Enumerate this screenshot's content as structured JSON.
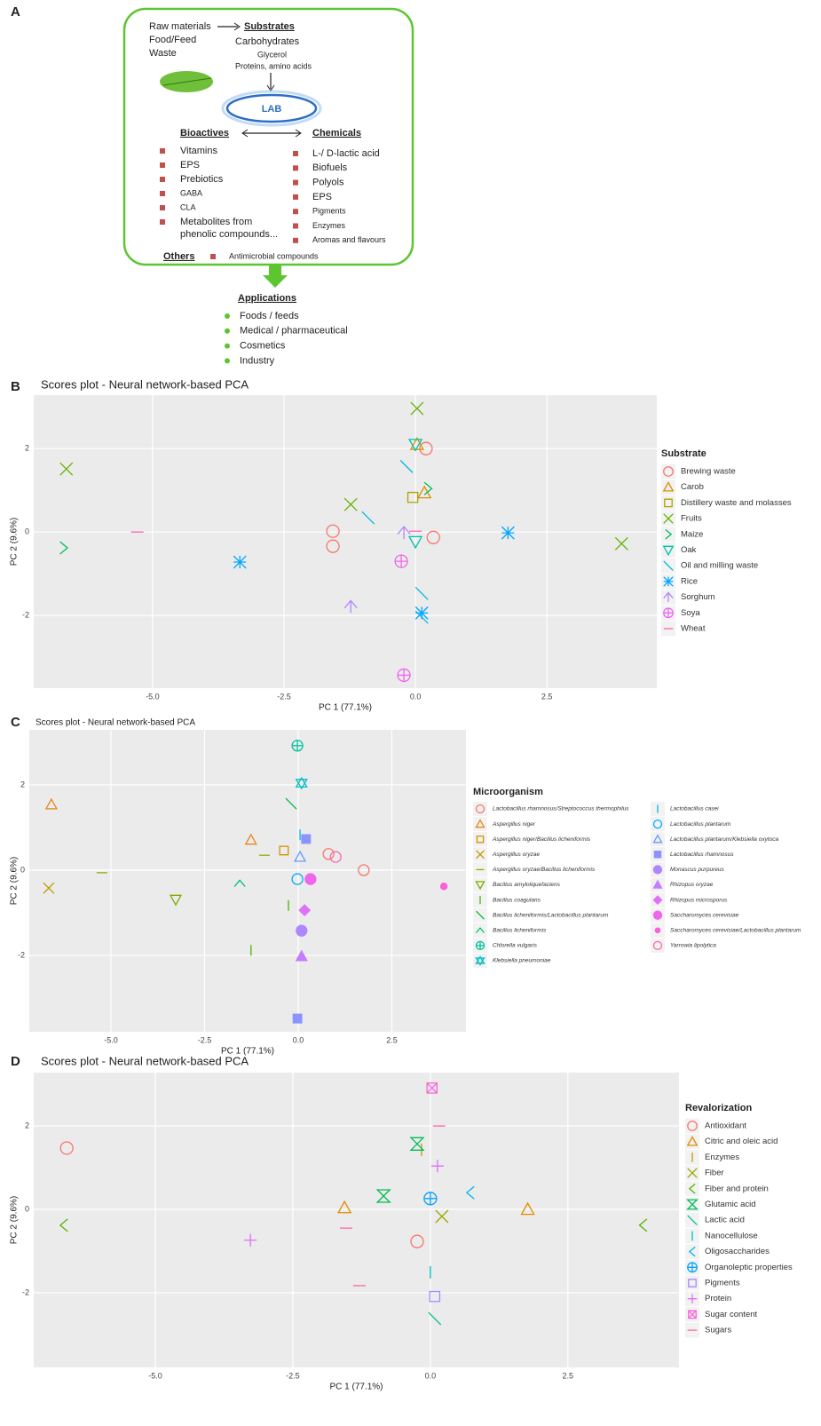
{
  "diagram": {
    "label": "A",
    "raw": [
      "Raw materials",
      "Food/Feed",
      "Waste"
    ],
    "substrates": {
      "title": "Substrates",
      "items": [
        "Carbohydrates",
        "Glycerol",
        "Proteins, amino acids"
      ]
    },
    "center": "LAB",
    "bioactives": {
      "title": "Bioactives",
      "items": [
        "Vitamins",
        "EPS",
        "Prebiotics",
        "GABA",
        "CLA",
        "Metabolites from"
      ],
      "continuation": "phenolic compounds..."
    },
    "chemicals": {
      "title": "Chemicals",
      "items": [
        "L-/ D-lactic acid",
        "Biofuels",
        "Polyols",
        "EPS",
        "Pigments",
        "Enzymes",
        "Aromas and flavours"
      ]
    },
    "others": {
      "title": "Others",
      "text": "Antimicrobial compounds"
    },
    "applications": {
      "title": "Applications",
      "items": [
        "Foods / feeds",
        "Medical / pharmaceutical",
        "Cosmetics",
        "Industry"
      ]
    }
  },
  "chart_data": [
    {
      "type": "scatter",
      "label": "B",
      "title": "Scores plot - Neural network-based PCA",
      "xlabel": "PC 1 (77.1%)",
      "ylabel": "PC 2 (9.6%)",
      "xlim": [
        -7.26,
        4.59
      ],
      "ylim": [
        -3.74,
        3.28
      ],
      "xticks": [
        {
          "value": -5,
          "label": "-5.0"
        },
        -2.5,
        {
          "value": 0,
          "label": "0.0"
        },
        2.5
      ],
      "yticks": [
        -2,
        0,
        2
      ],
      "grid": true,
      "legend_title": "Substrate",
      "series": [
        {
          "name": "Brewing waste",
          "color": "#F8766D",
          "marker": "circle",
          "x": [
            0.2,
            -1.57,
            -1.57,
            0.34
          ],
          "values": [
            2.0,
            0.02,
            -0.34,
            -0.13
          ]
        },
        {
          "name": "Carob",
          "color": "#DB8E00",
          "marker": "triangle",
          "x": [
            0.03,
            0.17
          ],
          "values": [
            2.1,
            0.94
          ]
        },
        {
          "name": "Distillery waste and molasses",
          "color": "#AEA200",
          "marker": "square",
          "x": [
            -0.05
          ],
          "values": [
            0.83
          ]
        },
        {
          "name": "Fruits",
          "color": "#64B200",
          "marker": "x",
          "x": [
            0.03,
            -6.64,
            3.92,
            -1.23
          ],
          "values": [
            2.96,
            1.51,
            -0.28,
            0.66
          ]
        },
        {
          "name": "Maize",
          "color": "#00BD5C",
          "marker": "chevron",
          "x": [
            0.24,
            -6.69
          ],
          "values": [
            1.04,
            -0.38
          ]
        },
        {
          "name": "Oak",
          "color": "#00C1A7",
          "marker": "trianglev",
          "x": [
            0,
            0
          ],
          "values": [
            2.1,
            -0.23
          ]
        },
        {
          "name": "Oil and milling waste",
          "color": "#00BADE",
          "marker": "backslash",
          "x": [
            -0.9,
            0.12,
            0.12,
            -0.17
          ],
          "values": [
            0.34,
            -2.04,
            -1.47,
            1.57
          ]
        },
        {
          "name": "Rice",
          "color": "#00A6FF",
          "marker": "asterisk",
          "x": [
            1.76,
            0.12,
            -3.34
          ],
          "values": [
            -0.02,
            -1.94,
            -0.72
          ]
        },
        {
          "name": "Sorghum",
          "color": "#B385FF",
          "marker": "arrow",
          "x": [
            -1.23,
            -0.22
          ],
          "values": [
            -1.79,
            -0.02
          ]
        },
        {
          "name": "Soya",
          "color": "#EF67EB",
          "marker": "circleplus",
          "x": [
            -0.27,
            -0.22
          ],
          "values": [
            -0.7,
            -3.43
          ]
        },
        {
          "name": "Wheat",
          "color": "#FF63B6",
          "marker": "hbar",
          "x": [
            -5.29,
            0
          ],
          "values": [
            0,
            0.02
          ]
        }
      ]
    },
    {
      "type": "scatter",
      "label": "C",
      "title": "Scores plot - Neural network-based PCA",
      "xlabel": "PC 1 (77.1%)",
      "ylabel": "PC 2 (9.6%)",
      "xlim": [
        -7.18,
        4.48
      ],
      "ylim": [
        -3.79,
        3.29
      ],
      "xticks": [
        {
          "value": -5,
          "label": "-5.0"
        },
        -2.5,
        {
          "value": 0,
          "label": "0.0"
        },
        2.5
      ],
      "yticks": [
        -2,
        0,
        2
      ],
      "grid": true,
      "legend_title": "Microorganism",
      "series": [
        {
          "name": "Lactobacillus rhamnosus/Streptococcus thermophilus",
          "color": "#F8766D",
          "marker": "circle",
          "x": [
            0.81,
            1.75
          ],
          "values": [
            0.38,
            0
          ]
        },
        {
          "name": "Aspergillus niger",
          "color": "#E7861B",
          "marker": "triangle",
          "x": [
            -6.59,
            -1.26
          ],
          "values": [
            1.54,
            0.71
          ]
        },
        {
          "name": "Aspergillus niger/Bacillus licheniformis",
          "color": "#D39200",
          "marker": "square",
          "x": [
            -0.38
          ],
          "values": [
            0.46
          ]
        },
        {
          "name": "Aspergillus oryzae",
          "color": "#BB9D00",
          "marker": "x",
          "x": [
            -6.66
          ],
          "values": [
            -0.42
          ]
        },
        {
          "name": "Aspergillus oryzae/Bacillus licheniformis",
          "color": "#9DA700",
          "marker": "hbar",
          "x": [
            -5.24,
            -0.9
          ],
          "values": [
            -0.06,
            0.35
          ]
        },
        {
          "name": "Bacillus amyloliquefaciens",
          "color": "#7CAE00",
          "marker": "trianglev",
          "x": [
            -3.27
          ],
          "values": [
            -0.69
          ]
        },
        {
          "name": "Bacillus coagulans",
          "color": "#49B500",
          "marker": "vbar",
          "x": [
            -0.26,
            -1.26
          ],
          "values": [
            -0.83,
            -1.88
          ]
        },
        {
          "name": "Bacillus licheniformis/Lactobacillus plantarum",
          "color": "#00BA38",
          "marker": "backslash",
          "x": [
            -0.19
          ],
          "values": [
            1.56
          ]
        },
        {
          "name": "Bacillus licheniformis",
          "color": "#00BF74",
          "marker": "chevronup",
          "x": [
            -1.56
          ],
          "values": [
            -0.31
          ]
        },
        {
          "name": "Chlorella vulgaris",
          "color": "#00C19F",
          "marker": "circleplus",
          "x": [
            -0.02
          ],
          "values": [
            2.92
          ]
        },
        {
          "name": "Klebsiella pneumoniae",
          "color": "#00BFC4",
          "marker": "star",
          "x": [
            0.09
          ],
          "values": [
            2.04
          ]
        },
        {
          "name": "Lactobacillus casei",
          "color": "#00B9E3",
          "marker": "vbar",
          "x": [
            0.05
          ],
          "values": [
            0.83
          ]
        },
        {
          "name": "Lactobacillus plantarum",
          "color": "#00ADFA",
          "marker": "circle",
          "x": [
            -0.02
          ],
          "values": [
            -0.21
          ]
        },
        {
          "name": "Lactobacillus plantarum/Klebsiella oxytoca",
          "color": "#619CFF",
          "marker": "triangle",
          "x": [
            0.05
          ],
          "values": [
            0.31
          ]
        },
        {
          "name": "Lactobacillus rhamnosus",
          "color": "#8B93FF",
          "marker": "square-filled",
          "x": [
            0.21,
            -0.02
          ],
          "values": [
            0.73,
            -3.48
          ]
        },
        {
          "name": "Monascus purpureus",
          "color": "#AE87FF",
          "marker": "circle-filled",
          "x": [
            0.09
          ],
          "values": [
            -1.42
          ]
        },
        {
          "name": "Rhizopus oryzae",
          "color": "#C77CFF",
          "marker": "triangle-filled",
          "x": [
            0.09
          ],
          "values": [
            -2.02
          ]
        },
        {
          "name": "Rhizopus microsporus",
          "color": "#DE71F9",
          "marker": "diamond-filled",
          "x": [
            0.17
          ],
          "values": [
            -0.94
          ]
        },
        {
          "name": "Saccharomyces cerevisiae",
          "color": "#F066EA",
          "marker": "circle-filled",
          "x": [
            0.33
          ],
          "values": [
            -0.21
          ]
        },
        {
          "name": "Saccharomyces cerevisiae/Lactobacillus plantarum",
          "color": "#FB61D7",
          "marker": "dot-filled",
          "x": [
            3.89
          ],
          "values": [
            -0.38
          ]
        },
        {
          "name": "Yarrowia lipolytica",
          "color": "#FF65AC",
          "marker": "circle",
          "x": [
            1.0
          ],
          "values": [
            0.31
          ]
        }
      ]
    },
    {
      "type": "scatter",
      "label": "D",
      "title": "Scores plot - Neural network-based PCA",
      "xlabel": "PC 1 (77.1%)",
      "ylabel": "PC 2 (9.6%)",
      "xlim": [
        -7.21,
        4.52
      ],
      "ylim": [
        -3.79,
        3.28
      ],
      "xticks": [
        {
          "value": -5,
          "label": "-5.0"
        },
        -2.5,
        {
          "value": 0,
          "label": "0.0"
        },
        2.5
      ],
      "yticks": [
        -2,
        0,
        2
      ],
      "grid": true,
      "legend_title": "Revalorization",
      "series": [
        {
          "name": "Antioxidant",
          "color": "#F8766D",
          "marker": "circle",
          "x": [
            -6.61,
            -0.24
          ],
          "values": [
            1.47,
            -0.77
          ]
        },
        {
          "name": "Citric and oleic acid",
          "color": "#E38900",
          "marker": "triangle",
          "x": [
            1.77,
            -1.56
          ],
          "values": [
            0,
            0.04
          ]
        },
        {
          "name": "Enzymes",
          "color": "#C49A00",
          "marker": "vbar",
          "x": [
            -0.16
          ],
          "values": [
            1.43
          ]
        },
        {
          "name": "Fiber",
          "color": "#99A800",
          "marker": "x",
          "x": [
            0.21
          ],
          "values": [
            -0.17
          ]
        },
        {
          "name": "Fiber and protein",
          "color": "#53B400",
          "marker": "chevronleft",
          "x": [
            -6.66,
            3.87
          ],
          "values": [
            -0.38,
            -0.38
          ]
        },
        {
          "name": "Glutamic acid",
          "color": "#00BC56",
          "marker": "hourglass",
          "x": [
            -0.85,
            -0.24
          ],
          "values": [
            0.32,
            1.57
          ]
        },
        {
          "name": "Lactic acid",
          "color": "#00C094",
          "marker": "backslash",
          "x": [
            0.08
          ],
          "values": [
            -2.62
          ]
        },
        {
          "name": "Nanocellulose",
          "color": "#00BFC4",
          "marker": "vbar",
          "x": [
            0
          ],
          "values": [
            -1.51
          ]
        },
        {
          "name": "Oligosaccharides",
          "color": "#00B6EB",
          "marker": "chevronleft",
          "x": [
            0.73
          ],
          "values": [
            0.4
          ]
        },
        {
          "name": "Organoleptic properties",
          "color": "#06A4FF",
          "marker": "circleplus",
          "x": [
            0
          ],
          "values": [
            0.26
          ]
        },
        {
          "name": "Pigments",
          "color": "#A58AFF",
          "marker": "square",
          "x": [
            0.08
          ],
          "values": [
            -2.09
          ]
        },
        {
          "name": "Protein",
          "color": "#DF70F8",
          "marker": "plus",
          "x": [
            -3.27,
            0.13
          ],
          "values": [
            -0.74,
            1.04
          ]
        },
        {
          "name": "Sugar content",
          "color": "#FB61D7",
          "marker": "xsquare",
          "x": [
            0.03
          ],
          "values": [
            2.91
          ]
        },
        {
          "name": "Sugars",
          "color": "#FF66A8",
          "marker": "hbar",
          "x": [
            0.16,
            -1.29,
            -1.53
          ],
          "values": [
            2.0,
            -1.83,
            -0.45
          ]
        }
      ]
    }
  ]
}
